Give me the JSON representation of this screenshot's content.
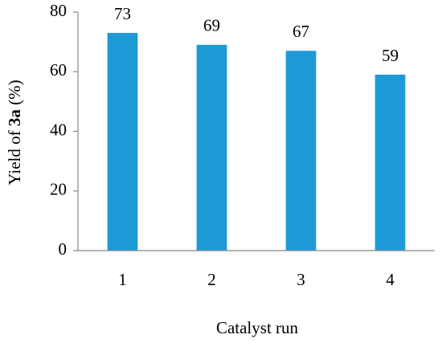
{
  "chart_data": {
    "type": "bar",
    "categories": [
      "1",
      "2",
      "3",
      "4"
    ],
    "values": [
      73,
      69,
      67,
      59
    ],
    "color": "#1e9ad6",
    "xlabel": "Catalyst run",
    "ylabel": [
      "Yield of",
      "3a",
      "(%)"
    ],
    "ylim": [
      0,
      80
    ],
    "yticks": [
      0,
      20,
      40,
      60,
      80
    ],
    "grid": false
  }
}
